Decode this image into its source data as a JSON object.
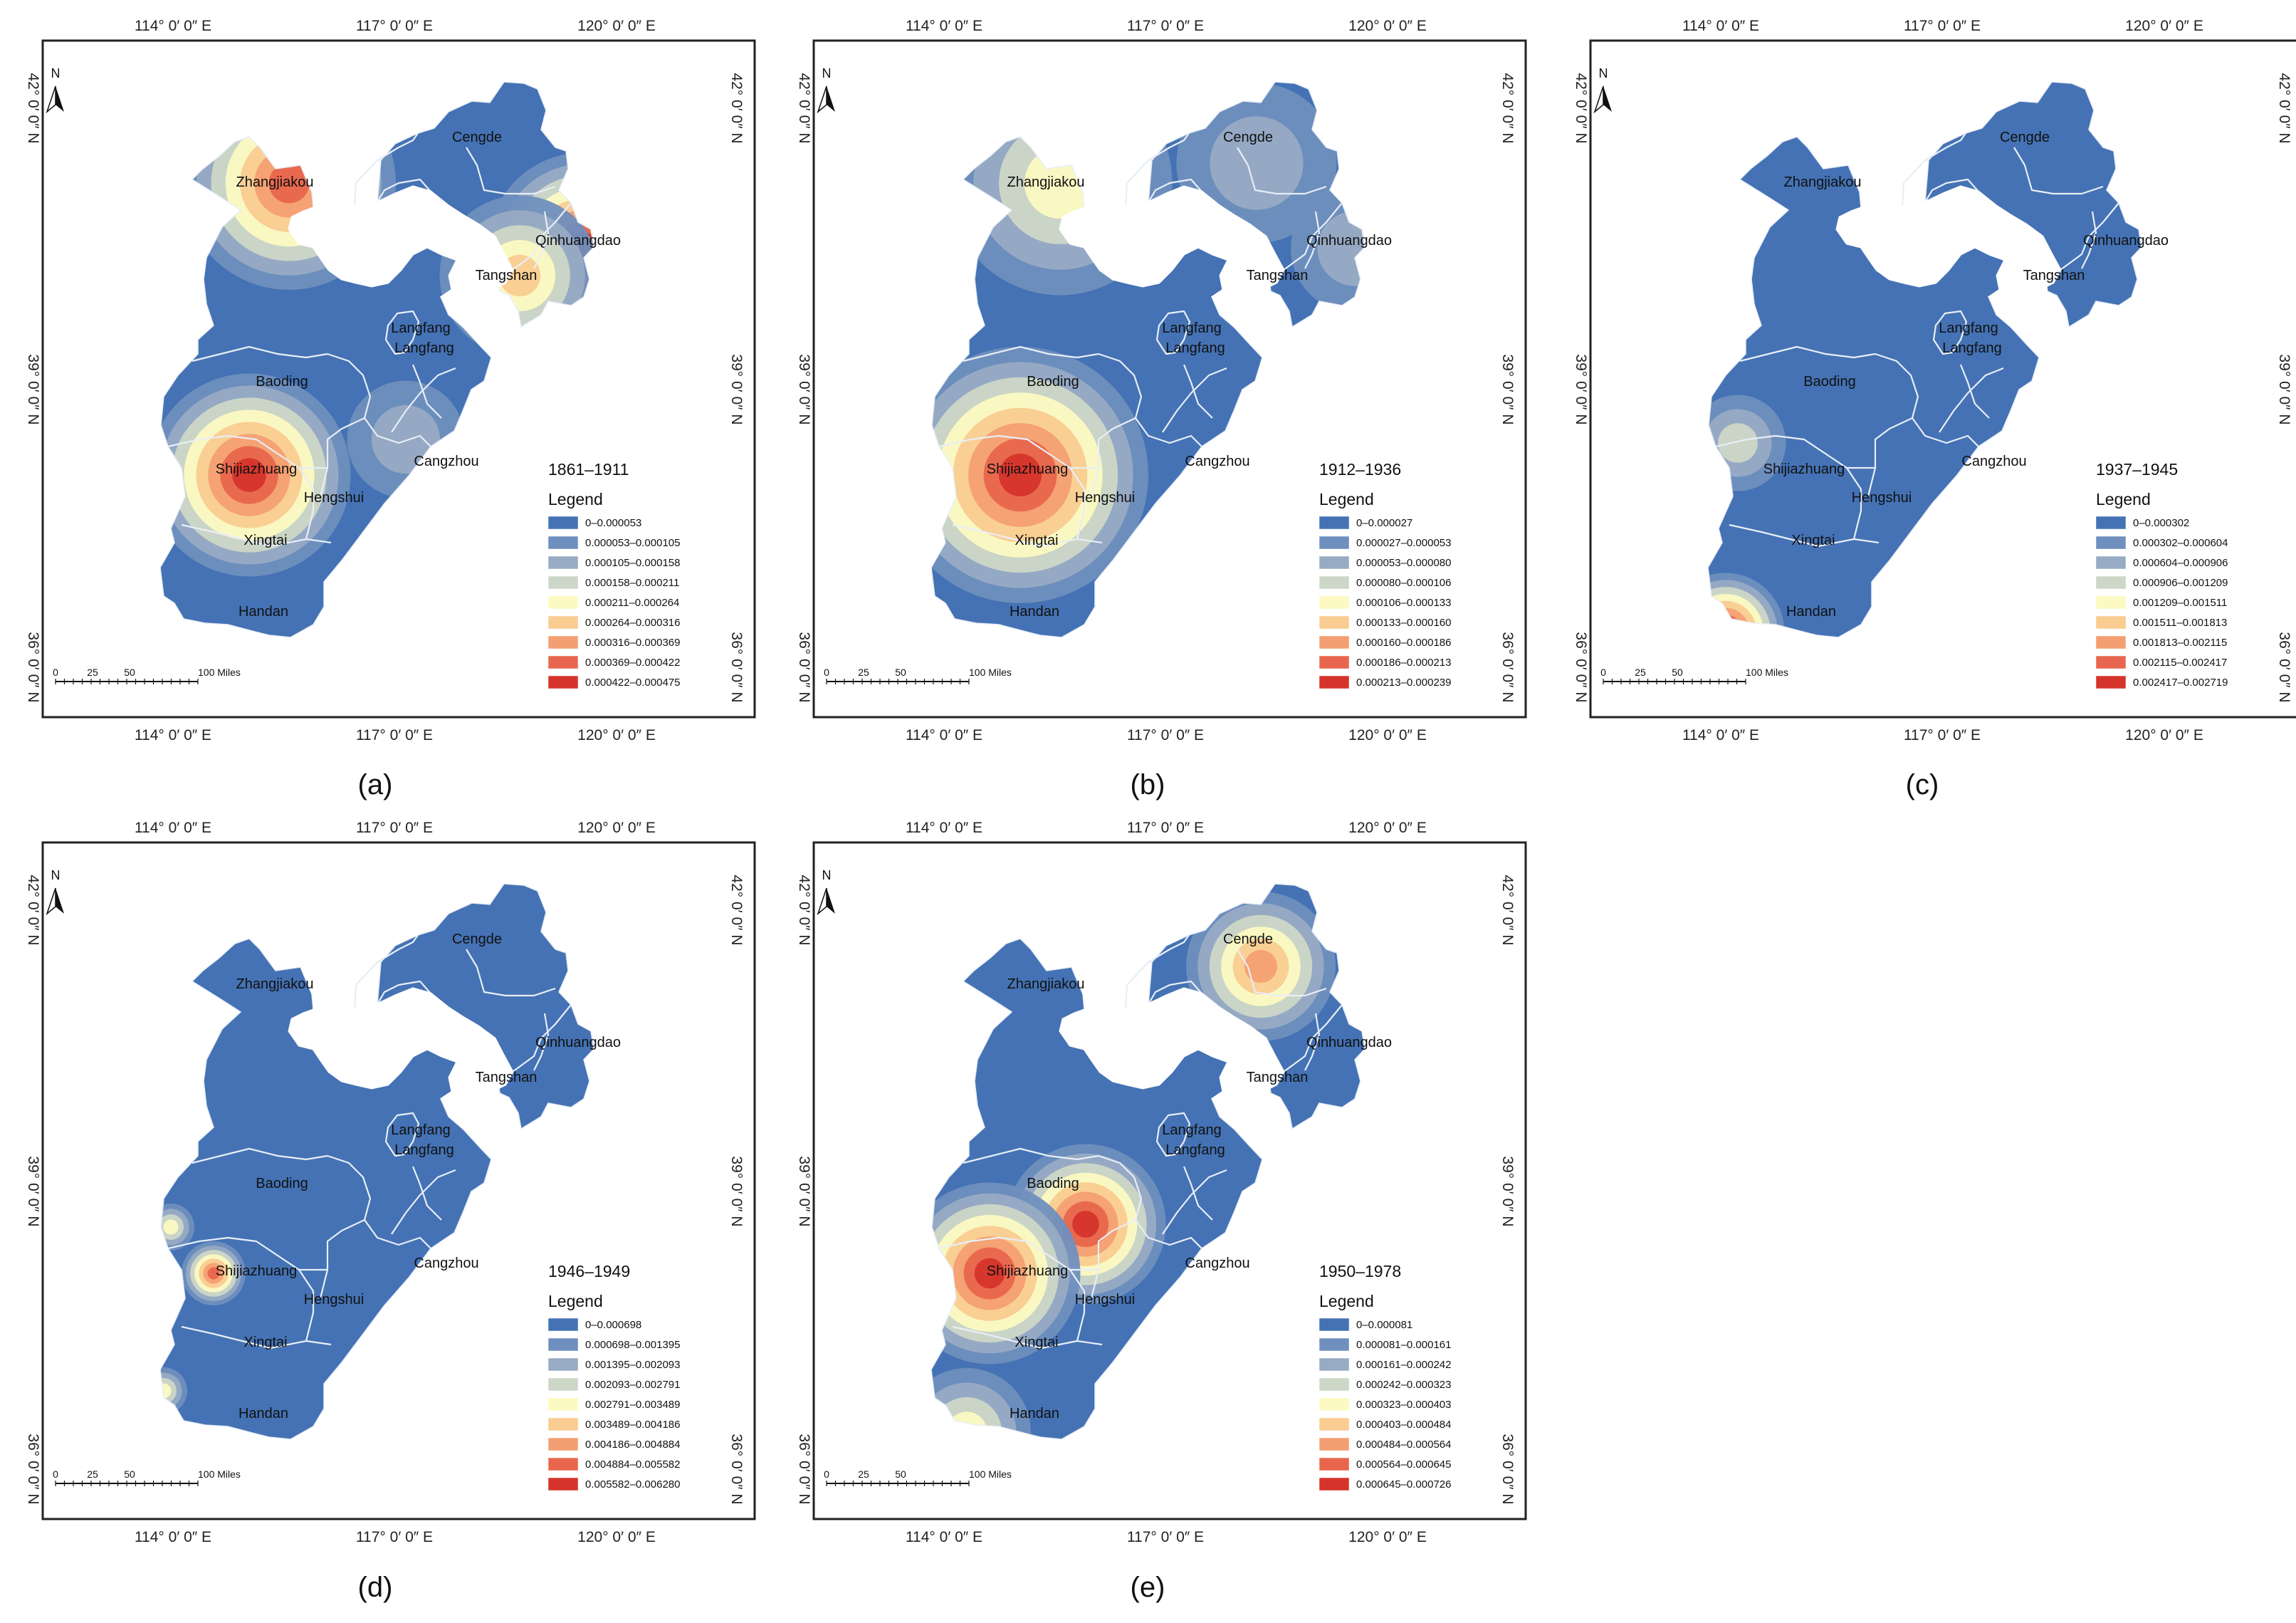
{
  "figure": {
    "lon_labels": [
      "114° 0′ 0″ E",
      "117° 0′ 0″ E",
      "120° 0′ 0″ E"
    ],
    "lat_labels": [
      "42° 0′ 0″ N",
      "39° 0′ 0″ N",
      "36° 0′ 0″ N"
    ],
    "north_label": "N",
    "scale_labels": [
      "0",
      "25",
      "50",
      "100 Miles"
    ],
    "legend_title": "Legend",
    "colors": [
      "#4472b4",
      "#6f8fbe",
      "#98abc4",
      "#ccd7c7",
      "#fcfac2",
      "#f9cc91",
      "#f49f72",
      "#e8664d",
      "#d6342b"
    ],
    "cities": [
      "Cengde",
      "Zhangjiakou",
      "Langfang",
      "Qinhuangdao",
      "Tangshan",
      "Langfang",
      "Baoding",
      "Cangzhou",
      "Shijiazhuang",
      "Hengshui",
      "Xingtai",
      "Handan"
    ]
  },
  "panels": [
    {
      "caption": "(a)",
      "period": "1861–1911",
      "ranges": [
        "0–0.000053",
        "0.000053–0.000105",
        "0.000105–0.000158",
        "0.000158–0.000211",
        "0.000211–0.000264",
        "0.000264–0.000316",
        "0.000316–0.000369",
        "0.000369–0.000422",
        "0.000422–0.000475"
      ],
      "hotspots": [
        {
          "city": "Zhangjiakou",
          "intensity": 0.88,
          "spread": 1.0
        },
        {
          "city": "Qinhuangdao",
          "intensity": 1.0,
          "spread": 0.9
        },
        {
          "city": "Tangshan",
          "intensity": 0.62,
          "spread": 0.75
        },
        {
          "city": "Cangzhou",
          "intensity": 0.3,
          "spread": 0.55
        },
        {
          "city": "Shijiazhuang",
          "intensity": 1.0,
          "spread": 0.95
        }
      ]
    },
    {
      "caption": "(b)",
      "period": "1912–1936",
      "ranges": [
        "0–0.000027",
        "0.000027–0.000053",
        "0.000053–0.000080",
        "0.000080–0.000106",
        "0.000106–0.000133",
        "0.000133–0.000160",
        "0.000160–0.000186",
        "0.000186–0.000213",
        "0.000213–0.000239"
      ],
      "hotspots": [
        {
          "city": "Zhangjiakou",
          "intensity": 0.55,
          "spread": 1.05
        },
        {
          "city": "Cengde",
          "intensity": 0.3,
          "spread": 0.75
        },
        {
          "city": "Qinhuangdao",
          "intensity": 0.25,
          "spread": 0.6
        },
        {
          "city": "Shijiazhuang",
          "intensity": 1.0,
          "spread": 1.2
        }
      ]
    },
    {
      "caption": "(c)",
      "period": "1937–1945",
      "ranges": [
        "0–0.000302",
        "0.000302–0.000604",
        "0.000604–0.000906",
        "0.000906–0.001209",
        "0.001209–0.001511",
        "0.001511–0.001813",
        "0.001813–0.002115",
        "0.002115–0.002417",
        "0.002417–0.002719"
      ],
      "hotspots": [
        {
          "city": "Baoding",
          "intensity": 0.35,
          "spread": 0.45
        },
        {
          "city": "Handan",
          "intensity": 1.0,
          "spread": 0.55
        }
      ]
    },
    {
      "caption": "(d)",
      "period": "1946–1949",
      "ranges": [
        "0–0.000698",
        "0.000698–0.001395",
        "0.001395–0.002093",
        "0.002093–0.002791",
        "0.002791–0.003489",
        "0.003489–0.004186",
        "0.004186–0.004884",
        "0.004884–0.005582",
        "0.005582–0.006280"
      ],
      "hotspots": [
        {
          "city": "Baoding",
          "intensity": 0.45,
          "spread": 0.22
        },
        {
          "city": "Shijiazhuang",
          "intensity": 0.85,
          "spread": 0.3
        },
        {
          "city": "Handan",
          "intensity": 0.45,
          "spread": 0.22
        }
      ]
    },
    {
      "caption": "(e)",
      "period": "1950–1978",
      "ranges": [
        "0–0.000081",
        "0.000081–0.000161",
        "0.000161–0.000242",
        "0.000242–0.000323",
        "0.000323–0.000403",
        "0.000403–0.000484",
        "0.000484–0.000564",
        "0.000564–0.000645",
        "0.000645–0.000726"
      ],
      "hotspots": [
        {
          "city": "Cengde",
          "intensity": 0.75,
          "spread": 0.7
        },
        {
          "city": "Baoding",
          "intensity": 1.0,
          "spread": 0.75
        },
        {
          "city": "Shijiazhuang",
          "intensity": 1.0,
          "spread": 0.85
        },
        {
          "city": "Handan",
          "intensity": 0.5,
          "spread": 0.6
        }
      ]
    }
  ]
}
